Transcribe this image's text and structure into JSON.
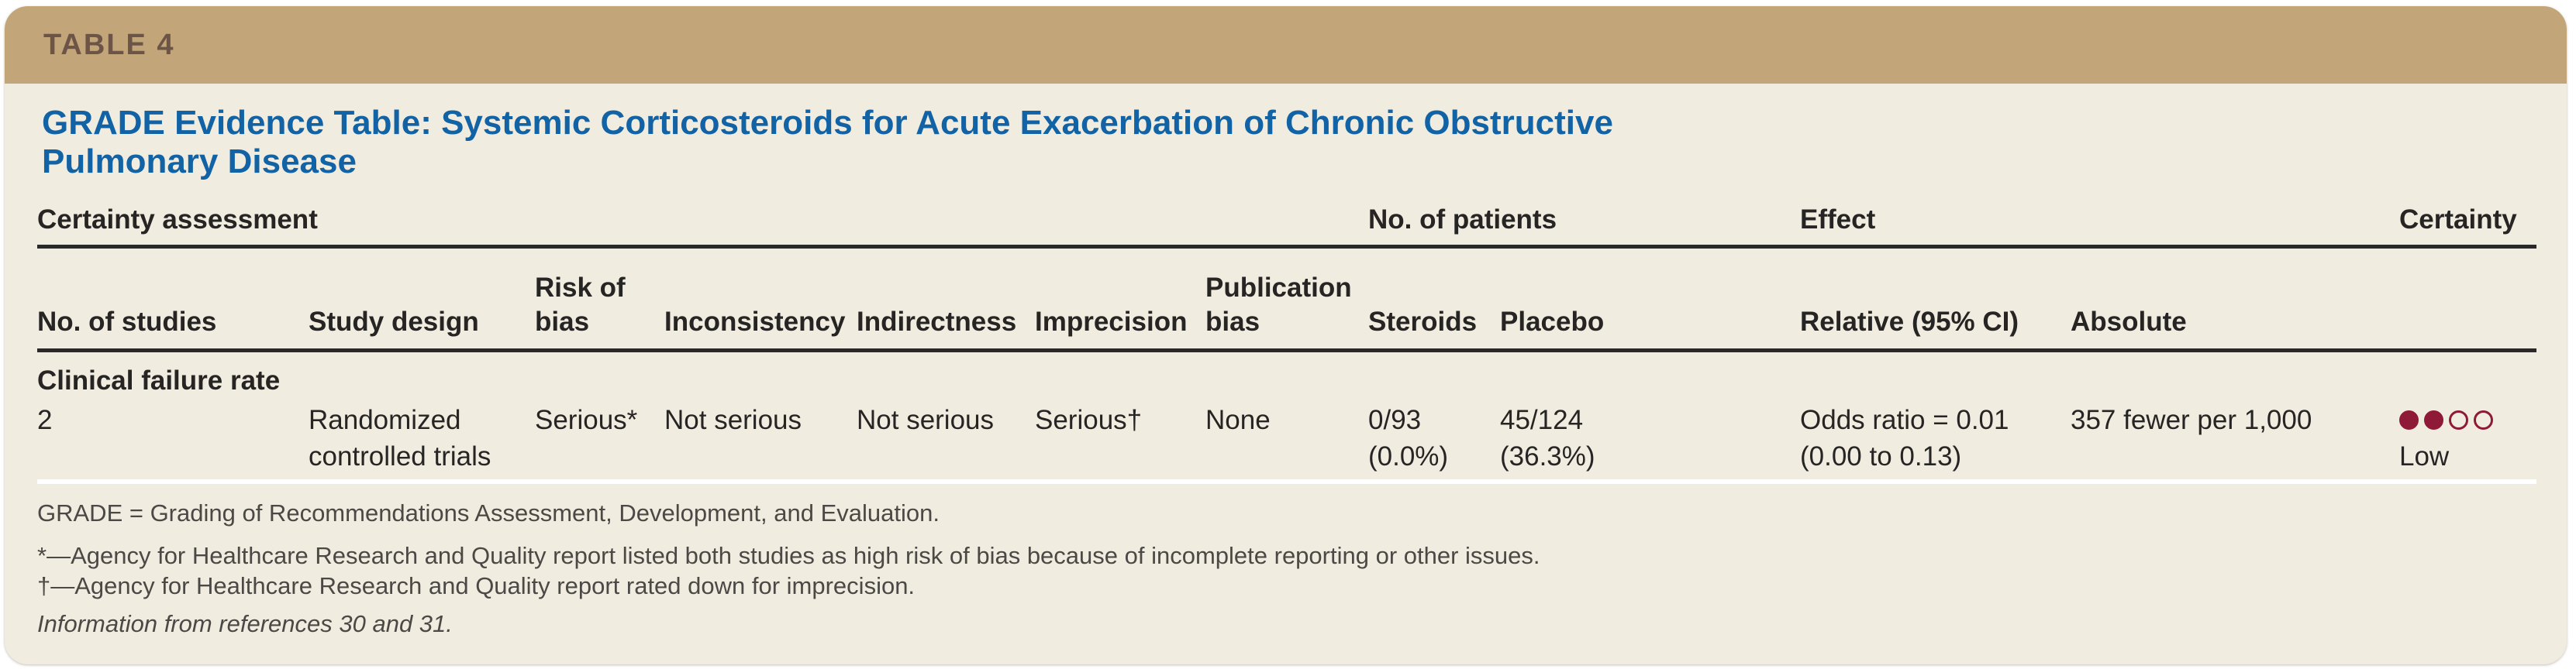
{
  "header": {
    "table_label": "TABLE 4",
    "title": "GRADE Evidence Table: Systemic Corticosteroids for Acute Exacerbation of Chronic Obstructive Pulmonary Disease"
  },
  "table": {
    "group_headers": [
      {
        "label": "Certainty assessment"
      },
      {
        "label": "No. of patients"
      },
      {
        "label": "Effect"
      },
      {
        "label": "Certainty"
      }
    ],
    "columns": [
      "No. of studies",
      "Study design",
      "Risk of bias",
      "Inconsistency",
      "Indirectness",
      "Imprecision",
      "Publication bias",
      "Steroids",
      "Placebo",
      "Relative (95% CI)",
      "Absolute"
    ],
    "section_label": "Clinical failure rate",
    "row": {
      "no_of_studies": "2",
      "study_design": "Randomized\ncontrolled trials",
      "risk_of_bias": "Serious*",
      "inconsistency": "Not serious",
      "indirectness": "Not serious",
      "imprecision": "Serious†",
      "publication_bias": "None",
      "steroids": "0/93\n(0.0%)",
      "placebo": "45/124\n(36.3%)",
      "relative_95_ci": "Odds ratio = 0.01\n(0.00 to 0.13)",
      "absolute": "357 fewer per 1,000",
      "certainty": {
        "filled_dots": 2,
        "total_dots": 4,
        "label": "Low"
      }
    }
  },
  "footnotes": {
    "abbreviation": "GRADE = Grading of Recommendations Assessment, Development, and Evaluation.",
    "star": "*—Agency for Healthcare Research and Quality report listed both studies as high risk of bias because of incomplete reporting or other issues.",
    "dagger": "†—Agency for Healthcare Research and Quality report rated down for imprecision.",
    "source": "Information from references 30 and 31."
  },
  "colors": {
    "header_bar": "#c2a679",
    "header_label": "#6c5546",
    "body_background": "#f1ece0",
    "title": "#1263a5",
    "text": "#262524",
    "rule": "#2a2927",
    "footnote_text": "#4b4945",
    "certainty_dot": "#8e1a38"
  }
}
